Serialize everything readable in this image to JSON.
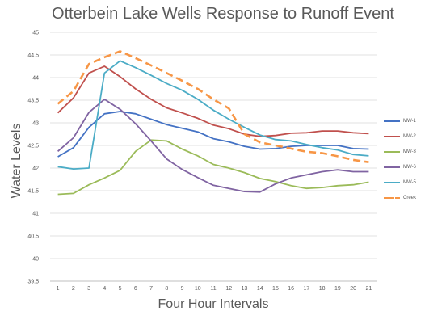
{
  "chart_data": {
    "type": "line",
    "title": "Otterbein Lake Wells Response to Runoff Event",
    "xlabel": "Four Hour Intervals",
    "ylabel": "Water Levels",
    "ylim": [
      39.5,
      45
    ],
    "ystep": 0.5,
    "yticks": [
      "39.5",
      "40",
      "40.5",
      "41",
      "41.5",
      "42",
      "42.5",
      "43",
      "43.5",
      "44",
      "44.5",
      "45"
    ],
    "x": [
      1,
      2,
      3,
      4,
      5,
      6,
      7,
      8,
      9,
      10,
      11,
      12,
      13,
      14,
      15,
      16,
      17,
      18,
      19,
      20,
      21
    ],
    "grid": true,
    "legend_position": "right",
    "series": [
      {
        "name": "MW-1",
        "color": "#4472C4",
        "dashed": false,
        "values": [
          42.25,
          42.45,
          42.9,
          43.2,
          43.25,
          43.2,
          43.08,
          42.96,
          42.88,
          42.8,
          42.65,
          42.58,
          42.48,
          42.42,
          42.43,
          42.48,
          42.5,
          42.5,
          42.5,
          42.43,
          42.42
        ]
      },
      {
        "name": "MW-2",
        "color": "#C0504D",
        "dashed": false,
        "values": [
          43.22,
          43.55,
          44.1,
          44.25,
          44.02,
          43.75,
          43.52,
          43.33,
          43.22,
          43.1,
          42.95,
          42.87,
          42.75,
          42.7,
          42.72,
          42.77,
          42.78,
          42.82,
          42.82,
          42.78,
          42.76
        ]
      },
      {
        "name": "MW-3",
        "color": "#9BBB59",
        "dashed": false,
        "values": [
          41.42,
          41.44,
          41.63,
          41.78,
          41.95,
          42.37,
          42.62,
          42.6,
          42.42,
          42.27,
          42.08,
          42.0,
          41.9,
          41.77,
          41.7,
          41.61,
          41.55,
          41.57,
          41.61,
          41.63,
          41.69
        ]
      },
      {
        "name": "MW-6",
        "color": "#8064A2",
        "dashed": false,
        "values": [
          42.37,
          42.67,
          43.23,
          43.52,
          43.3,
          42.98,
          42.6,
          42.2,
          41.97,
          41.79,
          41.62,
          41.55,
          41.48,
          41.47,
          41.65,
          41.78,
          41.85,
          41.92,
          41.96,
          41.92,
          41.92
        ]
      },
      {
        "name": "MW-5",
        "color": "#4BACC6",
        "dashed": false,
        "values": [
          42.03,
          41.98,
          42.0,
          44.1,
          44.37,
          44.22,
          44.05,
          43.87,
          43.72,
          43.52,
          43.28,
          43.08,
          42.9,
          42.73,
          42.63,
          42.6,
          42.52,
          42.45,
          42.4,
          42.3,
          42.27
        ]
      },
      {
        "name": "Creek",
        "color": "#F79646",
        "dashed": true,
        "values": [
          43.42,
          43.7,
          44.3,
          44.45,
          44.58,
          44.43,
          44.27,
          44.1,
          43.93,
          43.75,
          43.52,
          43.32,
          42.75,
          42.57,
          42.5,
          42.43,
          42.36,
          42.33,
          42.26,
          42.18,
          42.13
        ]
      }
    ]
  }
}
